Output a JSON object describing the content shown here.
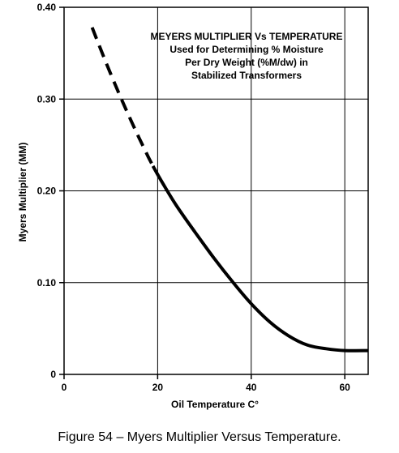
{
  "chart_data": {
    "type": "line",
    "title_lines": [
      "MEYERS MULTIPLIER Vs TEMPERATURE",
      "Used for Determining % Moisture",
      "Per Dry Weight (%M/dw) in",
      "Stabilized Transformers"
    ],
    "xlabel": "Oil Temperature C°",
    "ylabel": "Myers Multiplier (MM)",
    "xlim": [
      0,
      65
    ],
    "ylim": [
      0,
      0.4
    ],
    "x_ticks": [
      0,
      20,
      40,
      60
    ],
    "x_tick_labels": [
      "0",
      "20",
      "40",
      "60"
    ],
    "y_ticks": [
      0,
      0.1,
      0.2,
      0.3,
      0.4
    ],
    "y_tick_labels": [
      "0",
      "0.10",
      "0.20",
      "0.30",
      "0.40"
    ],
    "grid": true,
    "series": [
      {
        "style": "dashed",
        "x": [
          6,
          8,
          10,
          12,
          14,
          16,
          18,
          19
        ],
        "y": [
          0.378,
          0.352,
          0.327,
          0.303,
          0.28,
          0.258,
          0.237,
          0.227
        ]
      },
      {
        "style": "solid",
        "x": [
          19,
          21,
          24,
          28,
          32,
          36,
          40,
          44,
          48,
          52,
          56,
          60,
          65
        ],
        "y": [
          0.227,
          0.209,
          0.184,
          0.155,
          0.127,
          0.101,
          0.077,
          0.057,
          0.042,
          0.032,
          0.028,
          0.026,
          0.026
        ]
      }
    ]
  },
  "caption": "Figure 54 – Myers Multiplier Versus Temperature."
}
